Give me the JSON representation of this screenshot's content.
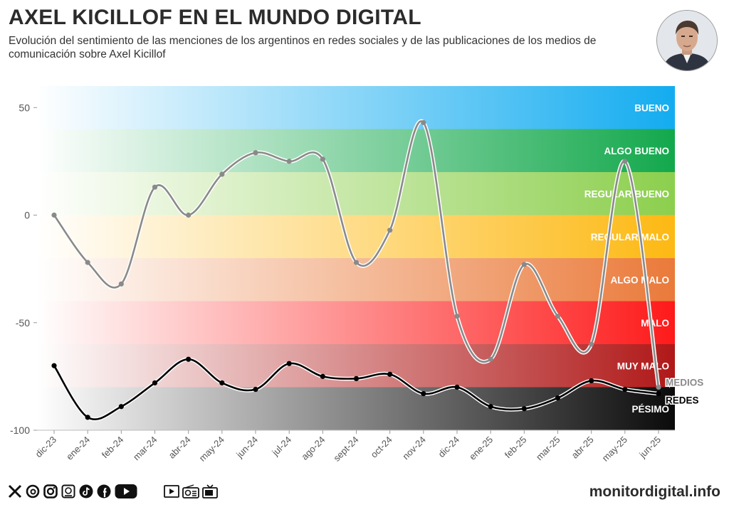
{
  "header": {
    "title": "AXEL KICILLOF EN EL MUNDO DIGITAL",
    "subtitle": "Evolución del sentimiento de las menciones de los argentinos en redes sociales y de las publicaciones de los medios de comunicación sobre Axel Kicillof"
  },
  "footer": {
    "site": "monitordigital.info",
    "social_icons": [
      "x-icon",
      "threads-icon",
      "instagram-icon",
      "news-icon",
      "tiktok-icon",
      "facebook-icon",
      "youtube-icon"
    ],
    "media_icons": [
      "video-icon",
      "radio-icon",
      "tv-icon"
    ]
  },
  "chart_data": {
    "type": "line",
    "title": "AXEL KICILLOF EN EL MUNDO DIGITAL",
    "xlabel": "",
    "ylabel": "",
    "ylim": [
      -100,
      60
    ],
    "yticks": [
      50,
      0,
      -50,
      -100
    ],
    "categories": [
      "dic-23",
      "ene-24",
      "feb-24",
      "mar-24",
      "abr-24",
      "may-24",
      "jun-24",
      "jul-24",
      "ago-24",
      "sept-24",
      "oct-24",
      "nov-24",
      "dic-24",
      "ene-25",
      "feb-25",
      "mar-25",
      "abr-25",
      "may-25",
      "jun-25"
    ],
    "series": [
      {
        "name": "MEDIOS",
        "color": "#8a8a8a",
        "values": [
          0,
          -22,
          -32,
          13,
          0,
          19,
          29,
          25,
          26,
          -22,
          -7,
          43,
          -47,
          -67,
          -23,
          -47,
          -60,
          25,
          -80
        ]
      },
      {
        "name": "REDES",
        "color": "#000000",
        "values": [
          -70,
          -94,
          -89,
          -78,
          -67,
          -78,
          -81,
          -69,
          -75,
          -76,
          -74,
          -83,
          -80,
          -89,
          -90,
          -85,
          -77,
          -81,
          -83
        ]
      }
    ],
    "bands": [
      {
        "label": "BUENO",
        "from": 40,
        "to": 60,
        "color": "#13acf0"
      },
      {
        "label": "ALGO BUENO",
        "from": 20,
        "to": 40,
        "color": "#13a84c"
      },
      {
        "label": "REGULAR BUENO",
        "from": 0,
        "to": 20,
        "color": "#8ccf4d"
      },
      {
        "label": "REGULAR MALO",
        "from": -20,
        "to": 0,
        "color": "#fdb913"
      },
      {
        "label": "ALGO MALO",
        "from": -40,
        "to": -20,
        "color": "#ea7a3a"
      },
      {
        "label": "MALO",
        "from": -60,
        "to": -40,
        "color": "#fe1a1a"
      },
      {
        "label": "MUY MALO",
        "from": -80,
        "to": -60,
        "color": "#b01818"
      },
      {
        "label": "PÉSIMO",
        "from": -100,
        "to": -80,
        "color": "#0b0b0b"
      }
    ]
  }
}
